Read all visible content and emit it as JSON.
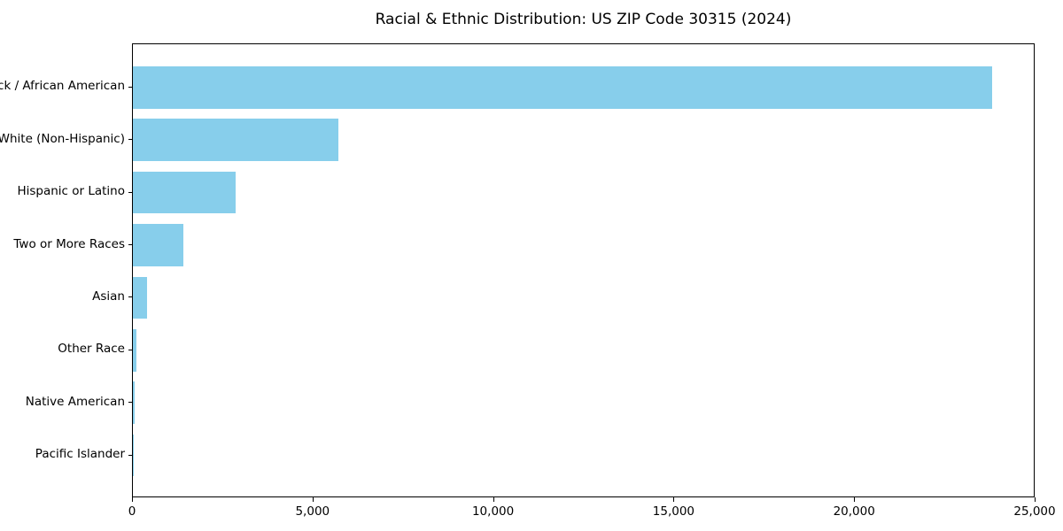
{
  "chart_data": {
    "type": "bar",
    "orientation": "horizontal",
    "title": "Racial & Ethnic Distribution: US ZIP Code 30315 (2024)",
    "categories": [
      "Black / African American",
      "White (Non-Hispanic)",
      "Hispanic or Latino",
      "Two or More Races",
      "Asian",
      "Other Race",
      "Native American",
      "Pacific Islander"
    ],
    "values": [
      23800,
      5700,
      2850,
      1400,
      390,
      110,
      40,
      10
    ],
    "xlabel": "",
    "ylabel": "",
    "xlim": [
      0,
      25000
    ],
    "xticks": [
      0,
      5000,
      10000,
      15000,
      20000,
      25000
    ],
    "xtick_labels": [
      "0",
      "5,000",
      "10,000",
      "15,000",
      "20,000",
      "25,000"
    ],
    "grid": false,
    "legend": null,
    "colors": {
      "bar": "#87CEEB",
      "axis": "#000000",
      "text": "#000000",
      "background": "#ffffff"
    }
  }
}
